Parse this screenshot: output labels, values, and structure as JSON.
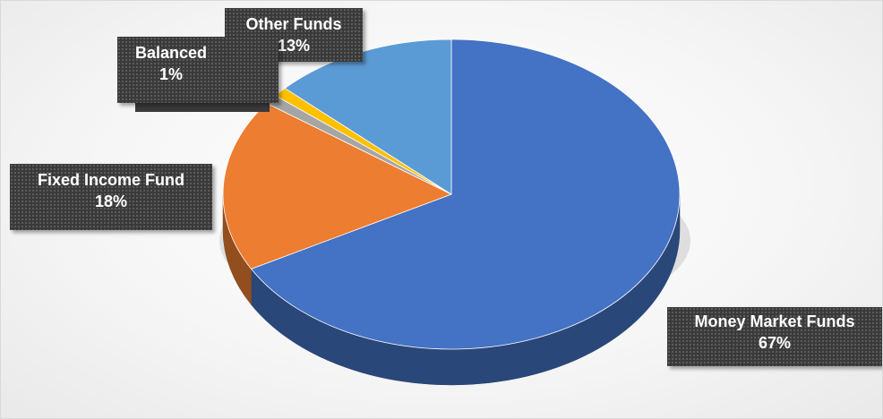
{
  "chart_data": {
    "type": "pie",
    "title": "",
    "three_d": true,
    "slices": [
      {
        "name": "Money Market Funds",
        "value": 67,
        "label": "67%",
        "color": "#4472C4"
      },
      {
        "name": "Fixed Income Fund",
        "value": 18,
        "label": "18%",
        "color": "#ED7D31"
      },
      {
        "name": "",
        "value": 1,
        "label": "",
        "color": "#A5A5A5"
      },
      {
        "name": "Balanced",
        "value": 1,
        "label": "1%",
        "color": "#FFC000"
      },
      {
        "name": "Other Funds",
        "value": 13,
        "label": "13%",
        "color": "#5B9BD5"
      }
    ],
    "label_style": {
      "background": "#3a3a3a",
      "text_color": "#ffffff"
    }
  }
}
